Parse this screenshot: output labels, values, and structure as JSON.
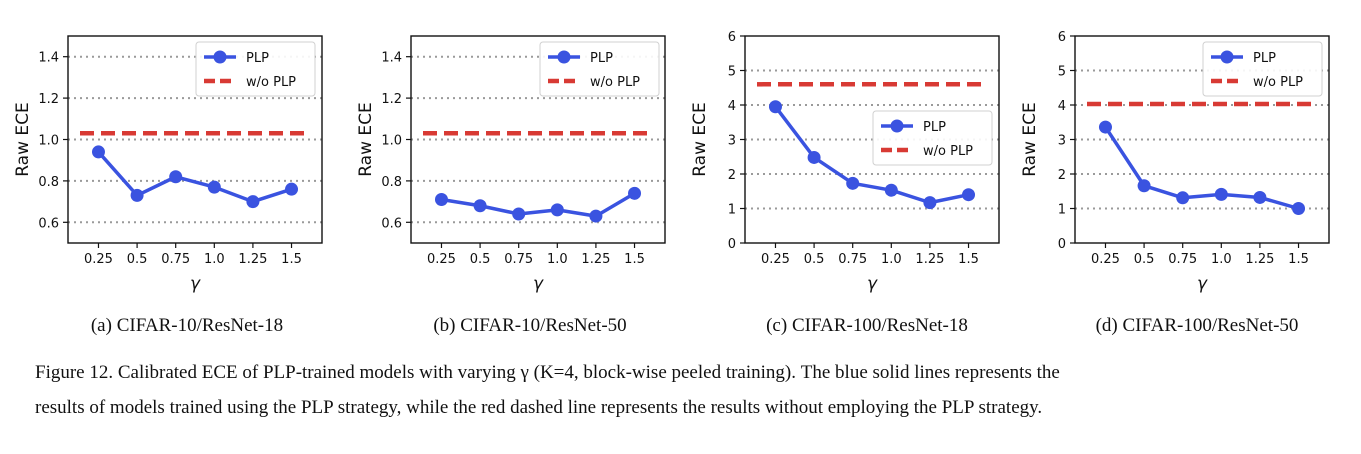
{
  "chart_data": [
    {
      "type": "line",
      "caption": "(a) CIFAR-10/ResNet-18",
      "xlabel": "γ",
      "ylabel": "Raw ECE",
      "categories": [
        "0.25",
        "0.5",
        "0.75",
        "1.0",
        "1.25",
        "1.5"
      ],
      "ylim": [
        0.5,
        1.5
      ],
      "yticks": [
        "0.6",
        "0.8",
        "1.0",
        "1.2",
        "1.4"
      ],
      "grid": "horizontal dotted",
      "legend_position": "top-right",
      "series": [
        {
          "name": "PLP",
          "style": "solid-marker",
          "color": "#3a53e0",
          "values": [
            0.94,
            0.73,
            0.82,
            0.77,
            0.7,
            0.76
          ]
        },
        {
          "name": "w/o PLP",
          "style": "dashed",
          "color": "#d83a34",
          "values": [
            1.03,
            1.03,
            1.03,
            1.03,
            1.03,
            1.03
          ]
        }
      ]
    },
    {
      "type": "line",
      "caption": "(b) CIFAR-10/ResNet-50",
      "xlabel": "γ",
      "ylabel": "Raw ECE",
      "categories": [
        "0.25",
        "0.5",
        "0.75",
        "1.0",
        "1.25",
        "1.5"
      ],
      "ylim": [
        0.5,
        1.5
      ],
      "yticks": [
        "0.6",
        "0.8",
        "1.0",
        "1.2",
        "1.4"
      ],
      "grid": "horizontal dotted",
      "legend_position": "top-right",
      "series": [
        {
          "name": "PLP",
          "style": "solid-marker",
          "color": "#3a53e0",
          "values": [
            0.71,
            0.68,
            0.64,
            0.66,
            0.63,
            0.74
          ]
        },
        {
          "name": "w/o PLP",
          "style": "dashed",
          "color": "#d83a34",
          "values": [
            1.03,
            1.03,
            1.03,
            1.03,
            1.03,
            1.03
          ]
        }
      ]
    },
    {
      "type": "line",
      "caption": "(c) CIFAR-100/ResNet-18",
      "xlabel": "γ",
      "ylabel": "Raw ECE",
      "categories": [
        "0.25",
        "0.5",
        "0.75",
        "1.0",
        "1.25",
        "1.5"
      ],
      "ylim": [
        0,
        6
      ],
      "yticks": [
        "0",
        "1",
        "2",
        "3",
        "4",
        "5",
        "6"
      ],
      "grid": "horizontal dotted",
      "legend_position": "middle-right",
      "series": [
        {
          "name": "PLP",
          "style": "solid-marker",
          "color": "#3a53e0",
          "values": [
            3.95,
            2.48,
            1.73,
            1.53,
            1.17,
            1.4
          ]
        },
        {
          "name": "w/o PLP",
          "style": "dashed",
          "color": "#d83a34",
          "values": [
            4.6,
            4.6,
            4.6,
            4.6,
            4.6,
            4.6
          ]
        }
      ]
    },
    {
      "type": "line",
      "caption": "(d) CIFAR-100/ResNet-50",
      "xlabel": "γ",
      "ylabel": "Raw ECE",
      "categories": [
        "0.25",
        "0.5",
        "0.75",
        "1.0",
        "1.25",
        "1.5"
      ],
      "ylim": [
        0,
        6
      ],
      "yticks": [
        "0",
        "1",
        "2",
        "3",
        "4",
        "5",
        "6"
      ],
      "grid": "horizontal dotted",
      "legend_position": "top-right",
      "series": [
        {
          "name": "PLP",
          "style": "solid-marker",
          "color": "#3a53e0",
          "values": [
            3.36,
            1.66,
            1.31,
            1.41,
            1.32,
            1.0
          ]
        },
        {
          "name": "w/o PLP",
          "style": "dashed",
          "color": "#d83a34",
          "values": [
            4.03,
            4.03,
            4.03,
            4.03,
            4.03,
            4.03
          ]
        }
      ]
    }
  ],
  "figure_caption": {
    "line1": "Figure 12. Calibrated ECE of PLP-trained models with varying γ (K=4, block-wise peeled training). The blue solid lines represents the",
    "line2": "results of models trained using the PLP strategy, while the red dashed line represents the results without employing the PLP strategy."
  }
}
